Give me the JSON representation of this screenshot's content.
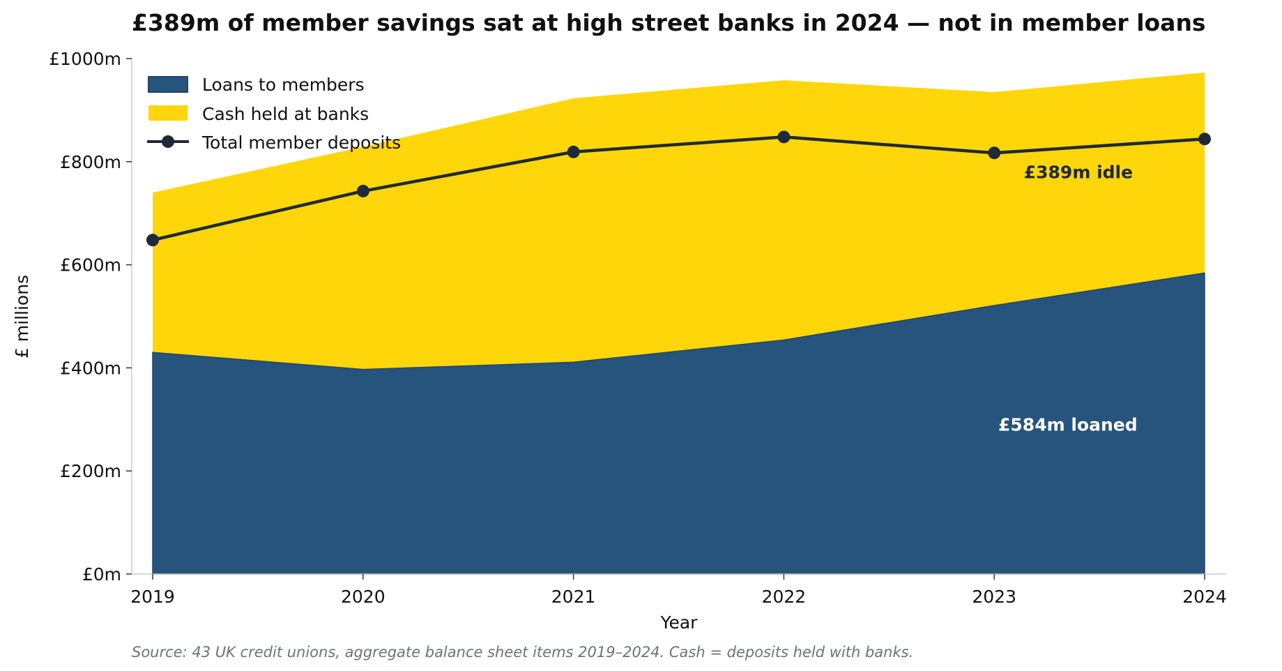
{
  "chart_data": {
    "type": "area",
    "title": "£389m of member savings sat at high street banks in 2024 — not in member loans",
    "xlabel": "Year",
    "ylabel": "£ millions",
    "x": [
      2019,
      2020,
      2021,
      2022,
      2023,
      2024
    ],
    "x_tick_labels": [
      "2019",
      "2020",
      "2021",
      "2022",
      "2023",
      "2024"
    ],
    "ylim": [
      0,
      1000
    ],
    "y_ticks": [
      0,
      200,
      400,
      600,
      800,
      1000
    ],
    "y_tick_labels": [
      "£0m",
      "£200m",
      "£400m",
      "£600m",
      "£800m",
      "£1000m"
    ],
    "stacked": true,
    "series": [
      {
        "name": "Loans to members",
        "kind": "area",
        "color": "#26547c",
        "values": [
          430,
          397,
          411,
          454,
          521,
          584
        ]
      },
      {
        "name": "Cash held at banks",
        "kind": "area",
        "color": "#ffd60a",
        "values": [
          310,
          432,
          512,
          504,
          414,
          389
        ]
      },
      {
        "name": "Total member deposits",
        "kind": "line",
        "color": "#1f2937",
        "values": [
          648,
          743,
          819,
          848,
          817,
          844
        ]
      }
    ],
    "annotations": [
      {
        "text": "£389m idle",
        "x": 2023.4,
        "y": 780,
        "color": "#1f2937"
      },
      {
        "text": "£584m loaned",
        "x": 2023.35,
        "y": 290,
        "color": "#ffffff"
      }
    ],
    "legend_position": "top-left",
    "grid": false,
    "source_note": "Source: 43 UK credit unions, aggregate balance sheet items 2019–2024. Cash = deposits held with banks."
  }
}
